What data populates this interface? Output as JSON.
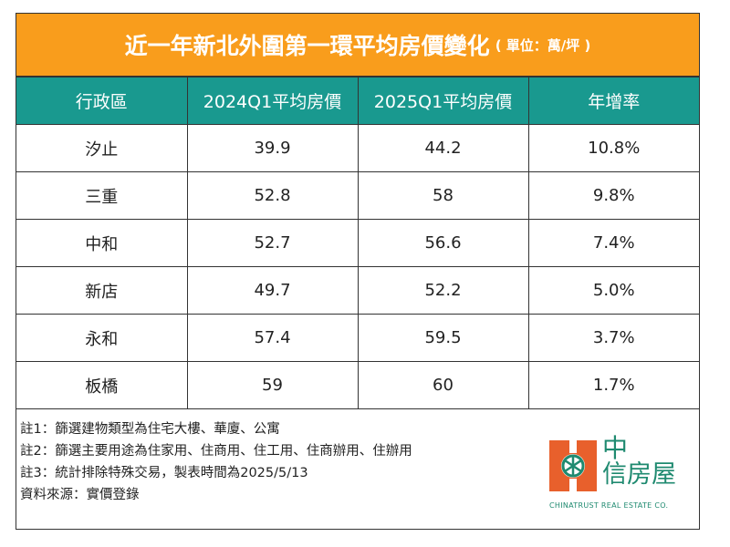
{
  "title": {
    "main": "近一年新北外圍第一環平均房價變化",
    "unit": "( 單位：萬/坪 )"
  },
  "table": {
    "headers": [
      "行政區",
      "2024Q1平均房價",
      "2025Q1平均房價",
      "年增率"
    ],
    "rows": [
      [
        "汐止",
        "39.9",
        "44.2",
        "10.8%"
      ],
      [
        "三重",
        "52.8",
        "58",
        "9.8%"
      ],
      [
        "中和",
        "52.7",
        "56.6",
        "7.4%"
      ],
      [
        "新店",
        "49.7",
        "52.2",
        "5.0%"
      ],
      [
        "永和",
        "57.4",
        "59.5",
        "3.7%"
      ],
      [
        "板橋",
        "59",
        "60",
        "1.7%"
      ]
    ]
  },
  "notes": [
    "註1：篩選建物類型為住宅大樓、華廈、公寓",
    "註2：篩選主要用途為住家用、住商用、住工用、住商辦用、住辦用",
    "註3：統計排除特殊交易，製表時間為2025/5/13",
    "資料來源：實價登錄"
  ],
  "logo": {
    "zh_line1": "中",
    "zh_line2": "信房屋",
    "en": "CHINATRUST REAL ESTATE CO."
  },
  "colors": {
    "title_bg": "#f99d1c",
    "header_bg": "#19998f",
    "logo_orange": "#e8602c",
    "logo_green": "#1f8a70"
  }
}
